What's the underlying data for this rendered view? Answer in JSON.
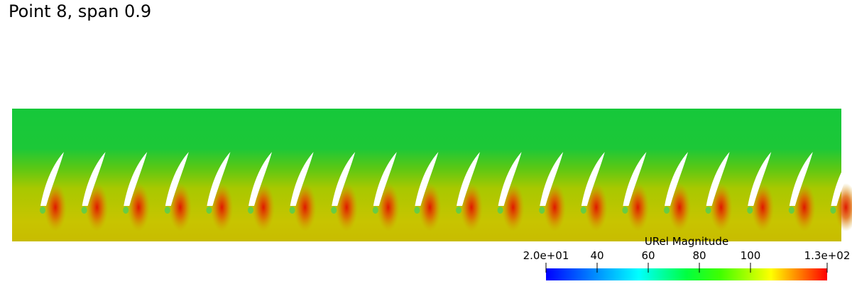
{
  "header": {
    "title": "Point 8, span 0.9"
  },
  "colorbar": {
    "title": "URel Magnitude",
    "range": [
      20,
      130
    ],
    "ticks": [
      {
        "value": 20,
        "label": "2.0e+01"
      },
      40,
      60,
      80,
      100,
      {
        "value": 130,
        "label": "1.3e+02"
      }
    ]
  }
}
